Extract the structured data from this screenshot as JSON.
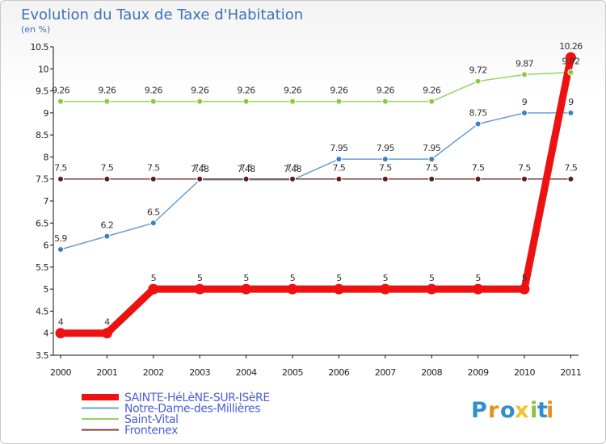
{
  "colors": {
    "Notre-Dame-des-Millières": "#6a9fd4",
    "Saint-Vital": "#99d266",
    "Frontenex": "#7b3a3a",
    "SAINTE-HéLèNE-SUR-ISèRE": "#ee1111",
    "marker_Notre-Dame-des-Millières": "#3c7fc4",
    "marker_Saint-Vital": "#86cc3c",
    "marker_Frontenex": "#5c1e1e",
    "marker_SAINTE-HéLèNE-SUR-ISèRE": "#ee1111"
  },
  "logo": {
    "letters": [
      "P",
      "r",
      "o",
      "x",
      "i",
      "t",
      "i"
    ],
    "colors": [
      "#2f8fd0",
      "#e8901a",
      "#2f8fd0",
      "#f2c230",
      "#8ac43f",
      "#2f8fd0",
      "#e8901a"
    ]
  },
  "chart_data": {
    "type": "line",
    "title": "Evolution du Taux de Taxe d'Habitation",
    "subtitle": "(en %)",
    "xlabel": "",
    "ylabel": "",
    "categories": [
      "2000",
      "2001",
      "2002",
      "2003",
      "2004",
      "2005",
      "2006",
      "2007",
      "2008",
      "2009",
      "2010",
      "2011"
    ],
    "ylim": [
      3.5,
      10.5
    ],
    "yticks": [
      "3.5",
      "4",
      "4.5",
      "5",
      "5.5",
      "6",
      "6.5",
      "7",
      "7.5",
      "8",
      "8.5",
      "9",
      "9.5",
      "10",
      "10.5"
    ],
    "grid": false,
    "legend_position": "bottom-left",
    "series": [
      {
        "name": "Notre-Dame-des-Millières",
        "values": [
          5.9,
          6.2,
          6.5,
          7.48,
          7.48,
          7.48,
          7.95,
          7.95,
          7.95,
          8.75,
          9,
          9
        ],
        "labels": [
          "5.9",
          "6.2",
          "6.5",
          "7.48",
          "7.48",
          "7.48",
          "7.95",
          "7.95",
          "7.95",
          "8.75",
          "9",
          "9"
        ]
      },
      {
        "name": "Saint-Vital",
        "values": [
          9.26,
          9.26,
          9.26,
          9.26,
          9.26,
          9.26,
          9.26,
          9.26,
          9.26,
          9.72,
          9.87,
          9.92
        ],
        "labels": [
          "9.26",
          "9.26",
          "9.26",
          "9.26",
          "9.26",
          "9.26",
          "9.26",
          "9.26",
          "9.26",
          "9.72",
          "9.87",
          "9.92"
        ]
      },
      {
        "name": "Frontenex",
        "values": [
          7.5,
          7.5,
          7.5,
          7.5,
          7.5,
          7.5,
          7.5,
          7.5,
          7.5,
          7.5,
          7.5,
          7.5
        ],
        "labels": [
          "7.5",
          "7.5",
          "7.5",
          "7.5",
          "7.5",
          "7.5",
          "7.5",
          "7.5",
          "7.5",
          "7.5",
          "7.5",
          "7.5"
        ]
      },
      {
        "name": "SAINTE-HéLèNE-SUR-ISèRE",
        "values": [
          4,
          4,
          5,
          5,
          5,
          5,
          5,
          5,
          5,
          5,
          5,
          10.26
        ],
        "labels": [
          "4",
          "4",
          "5",
          "5",
          "5",
          "5",
          "5",
          "5",
          "5",
          "5",
          "5",
          "10.26"
        ]
      }
    ],
    "legend": [
      "SAINTE-HéLèNE-SUR-ISèRE",
      "Notre-Dame-des-Millières",
      "Saint-Vital",
      "Frontenex"
    ]
  }
}
